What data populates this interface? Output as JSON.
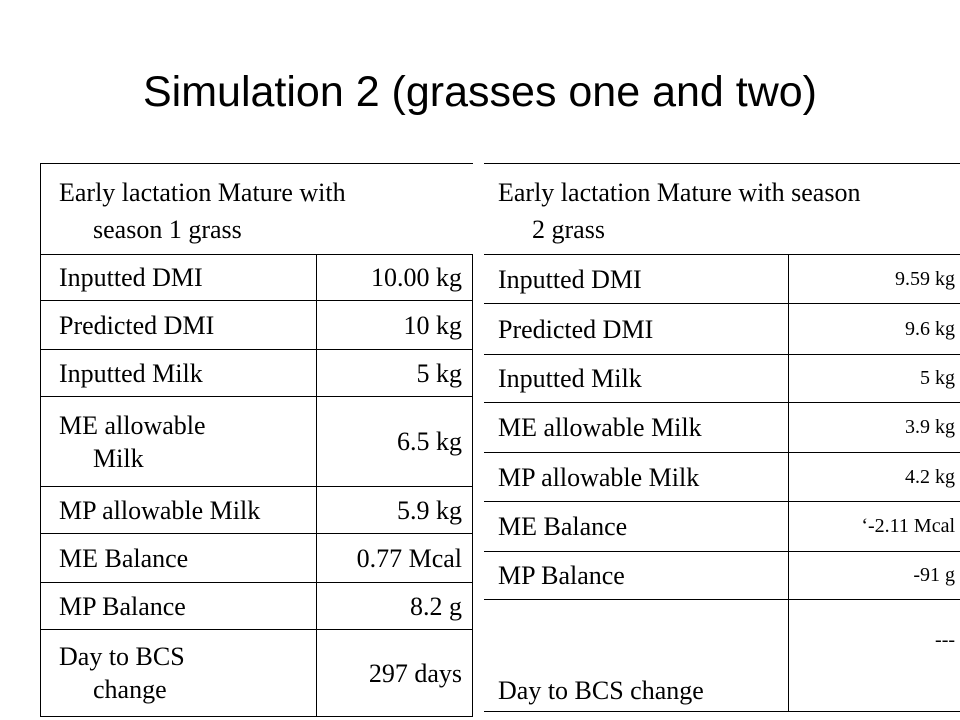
{
  "title": "Simulation 2 (grasses one and two)",
  "table1": {
    "header_line1": "Early lactation Mature with",
    "header_line2": "season 1 grass",
    "rows": [
      {
        "label": "Inputted DMI",
        "value": "10.00 kg"
      },
      {
        "label": "Predicted DMI",
        "value": "10 kg"
      },
      {
        "label": "Inputted Milk",
        "value": "5 kg"
      },
      {
        "label_line1": "ME allowable",
        "label_line2": "Milk",
        "value": "6.5 kg"
      },
      {
        "label": "MP allowable Milk",
        "value": "5.9 kg"
      },
      {
        "label": "ME Balance",
        "value": "0.77 Mcal"
      },
      {
        "label": "MP Balance",
        "value": "8.2 g"
      },
      {
        "label_line1": "Day to BCS",
        "label_line2": "change",
        "value": "297 days"
      }
    ]
  },
  "table2": {
    "header_line1": "Early lactation Mature with season",
    "header_line2": "2 grass",
    "rows": [
      {
        "label": "Inputted DMI",
        "value": "9.59 kg"
      },
      {
        "label": "Predicted DMI",
        "value": "9.6 kg"
      },
      {
        "label": "Inputted Milk",
        "value": "5 kg"
      },
      {
        "label": "ME allowable Milk",
        "value": "3.9 kg"
      },
      {
        "label": "MP allowable Milk",
        "value": "4.2 kg"
      },
      {
        "label": "ME Balance",
        "value": "‘-2.11 Mcal"
      },
      {
        "label": "MP Balance",
        "value": "-91 g"
      },
      {
        "label": "Day to BCS change",
        "value": "---"
      }
    ]
  }
}
